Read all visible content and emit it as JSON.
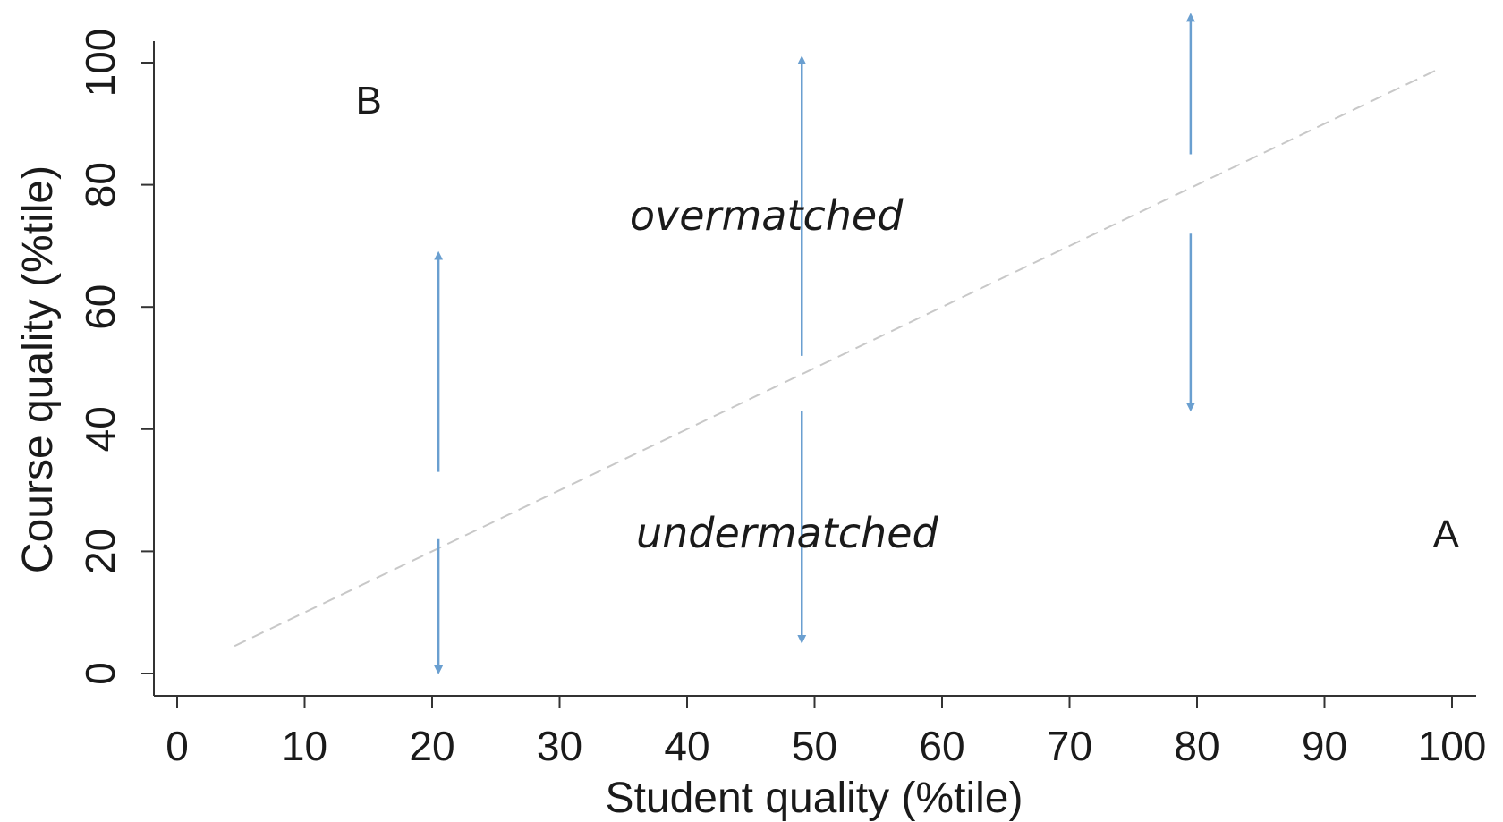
{
  "chart_data": {
    "type": "line",
    "xlabel": "Student quality (%tile)",
    "ylabel": "Course quality (%tile)",
    "xlim": [
      0,
      100
    ],
    "ylim": [
      0,
      100
    ],
    "x_ticks": [
      0,
      10,
      20,
      30,
      40,
      50,
      60,
      70,
      80,
      90,
      100
    ],
    "y_ticks": [
      0,
      20,
      40,
      60,
      80,
      100
    ],
    "grid": false,
    "series": [
      {
        "type": "dashed-line",
        "color": "#c8c8c8",
        "points": [
          [
            4.5,
            4.5
          ],
          [
            99,
            99
          ]
        ]
      }
    ],
    "arrows": [
      {
        "x": 20.5,
        "gap_from": 22,
        "gap_to": 33,
        "down_to": 0,
        "up_to": 69
      },
      {
        "x": 49,
        "gap_from": 43,
        "gap_to": 52,
        "down_to": 5,
        "up_to": 101
      },
      {
        "x": 79.5,
        "gap_from": 72,
        "gap_to": 85,
        "down_to": 43,
        "up_to": 108
      }
    ],
    "arrow_color": "#6a9fd0",
    "annotations": [
      {
        "text": "overmatched",
        "x": 35.5,
        "y": 75,
        "style": "italic"
      },
      {
        "text": "undermatched",
        "x": 36,
        "y": 23,
        "style": "italic"
      },
      {
        "text": "A",
        "x": 98.5,
        "y": 23,
        "style": "normal"
      },
      {
        "text": "B",
        "x": 14,
        "y": 94,
        "style": "normal"
      }
    ]
  }
}
